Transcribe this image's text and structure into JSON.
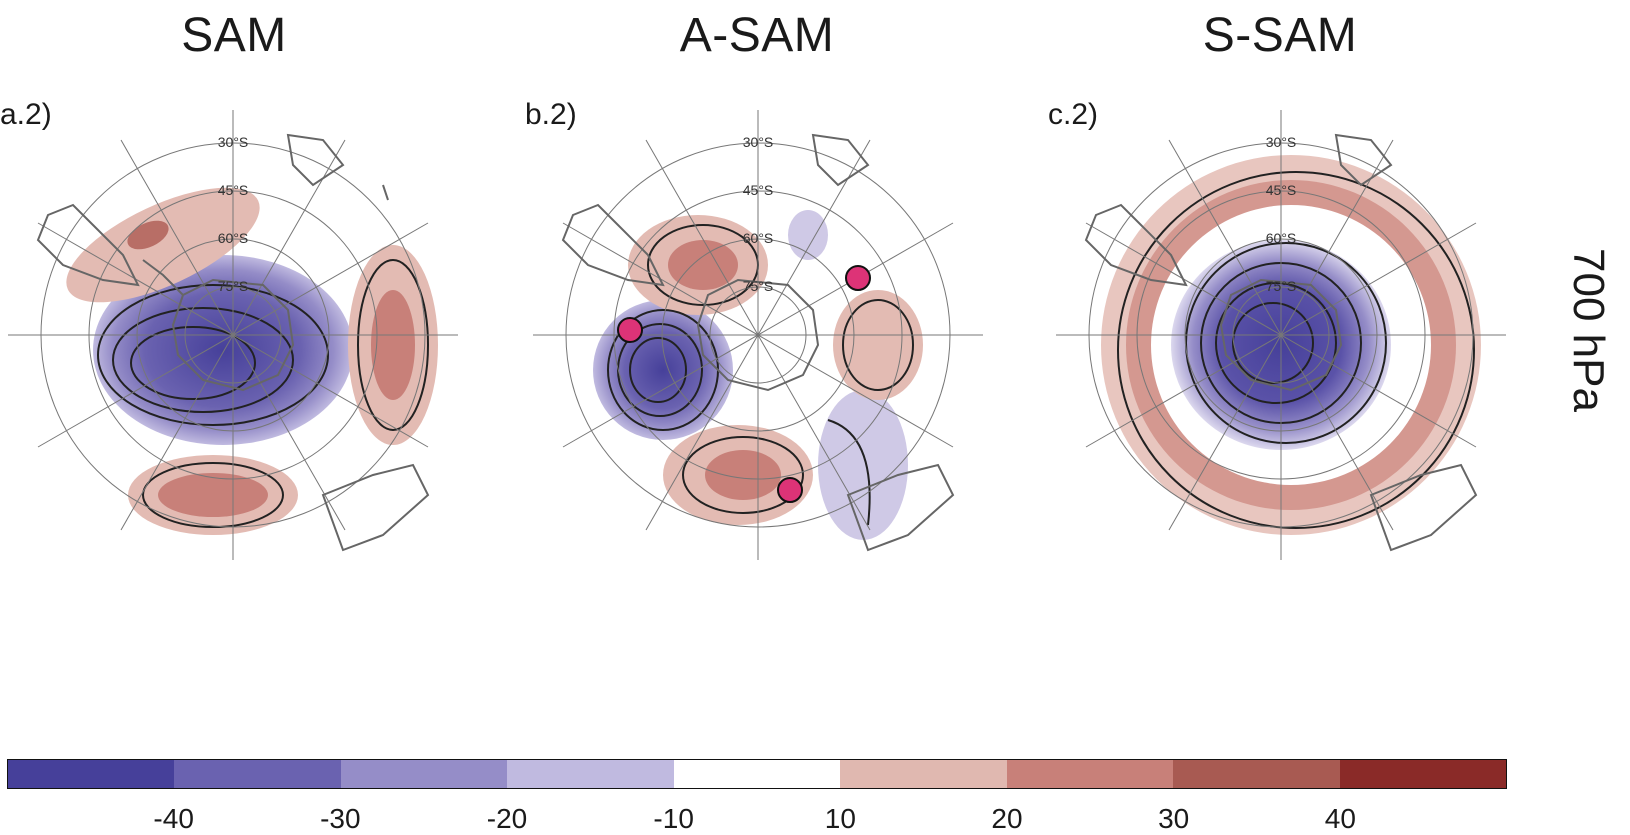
{
  "panels": [
    {
      "title": "SAM",
      "label": "a.2)"
    },
    {
      "title": "A-SAM",
      "label": "b.2)"
    },
    {
      "title": "S-SAM",
      "label": "c.2)"
    }
  ],
  "level_label": "700 hPa",
  "latitude_labels": [
    "30°S",
    "45°S",
    "60°S",
    "75°S"
  ],
  "colorbar": {
    "colors": [
      "#46409a",
      "#6a62b0",
      "#958dc8",
      "#c0bae0",
      "#ffffff",
      "#e0b8b0",
      "#c88079",
      "#a85a52",
      "#8a2a28"
    ],
    "ticks": [
      "-40",
      "-30",
      "-20",
      "-10",
      "10",
      "20",
      "30",
      "40"
    ]
  },
  "station_marker_color": "#dd3377"
}
